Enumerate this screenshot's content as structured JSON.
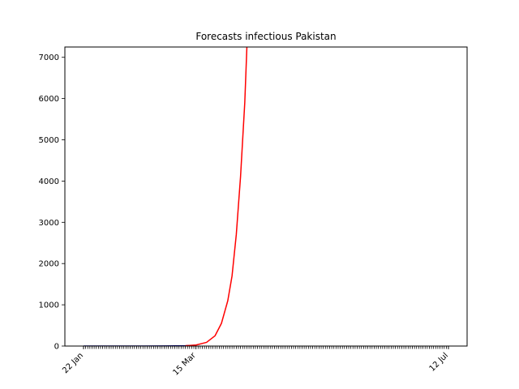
{
  "chart_data": {
    "type": "line",
    "title": "Forecasts infectious Pakistan",
    "xlabel": "",
    "ylabel": "",
    "x_axis": {
      "type": "date",
      "range": [
        "2020-01-22",
        "2020-07-12"
      ],
      "labeled_ticks": [
        {
          "date": "2020-01-22",
          "label": "22 Jan"
        },
        {
          "date": "2020-03-15",
          "label": "15 Mar"
        },
        {
          "date": "2020-07-12",
          "label": "12 Jul"
        }
      ],
      "minor_ticks": "daily"
    },
    "ylim": [
      0,
      7250
    ],
    "yticks": [
      0,
      1000,
      2000,
      3000,
      4000,
      5000,
      6000,
      7000
    ],
    "grid": false,
    "series": [
      {
        "color": "#00008b",
        "points": [
          [
            "2020-01-22",
            0
          ],
          [
            "2020-02-05",
            0
          ],
          [
            "2020-02-20",
            0
          ],
          [
            "2020-03-01",
            2
          ],
          [
            "2020-03-10",
            8
          ],
          [
            "2020-03-15",
            20
          ]
        ]
      },
      {
        "color": "#ff0000",
        "points": [
          [
            "2020-03-10",
            8
          ],
          [
            "2020-03-15",
            25
          ],
          [
            "2020-03-20",
            90
          ],
          [
            "2020-03-24",
            250
          ],
          [
            "2020-03-27",
            550
          ],
          [
            "2020-03-30",
            1100
          ],
          [
            "2020-04-01",
            1700
          ],
          [
            "2020-04-03",
            2700
          ],
          [
            "2020-04-05",
            4100
          ],
          [
            "2020-04-07",
            5900
          ],
          [
            "2020-04-08",
            7250
          ]
        ]
      }
    ]
  }
}
